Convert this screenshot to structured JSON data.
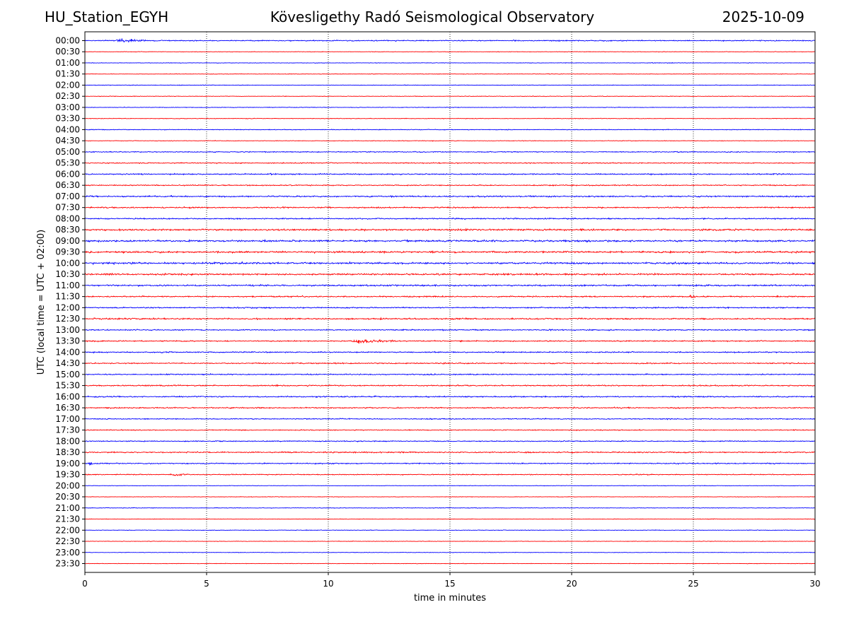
{
  "header": {
    "station": "HU_Station_EGYH",
    "title": "Kövesligethy Radó Seismological Observatory",
    "date": "2025-10-09"
  },
  "chart_data": {
    "type": "line",
    "title": "Kövesligethy Radó Seismological Observatory",
    "xlabel": "time in minutes",
    "ylabel": "UTC (local time = UTC + 02:00)",
    "xlim": [
      0,
      30
    ],
    "xticks": [
      0,
      5,
      10,
      15,
      20,
      25,
      30
    ],
    "grid": "vertical dotted",
    "series_colors": [
      "#0000ff",
      "#ff0000"
    ],
    "rows": [
      {
        "label": "00:00",
        "noise": 0.25,
        "events": [
          {
            "t": 1.5,
            "dur": 1.8,
            "amp": 1.1
          },
          {
            "t": 3.0,
            "dur": 1.5,
            "amp": 0.3
          }
        ]
      },
      {
        "label": "00:30",
        "noise": 0.12,
        "events": []
      },
      {
        "label": "01:00",
        "noise": 0.12,
        "events": []
      },
      {
        "label": "01:30",
        "noise": 0.12,
        "events": []
      },
      {
        "label": "02:00",
        "noise": 0.13,
        "events": []
      },
      {
        "label": "02:30",
        "noise": 0.13,
        "events": [
          {
            "t": 18.4,
            "dur": 0.4,
            "amp": 0.3
          },
          {
            "t": 22.0,
            "dur": 0.3,
            "amp": 0.25
          }
        ]
      },
      {
        "label": "03:00",
        "noise": 0.14,
        "events": []
      },
      {
        "label": "03:30",
        "noise": 0.14,
        "events": []
      },
      {
        "label": "04:00",
        "noise": 0.17,
        "events": [
          {
            "t": 3.5,
            "dur": 0.5,
            "amp": 0.2
          }
        ]
      },
      {
        "label": "04:30",
        "noise": 0.14,
        "events": [
          {
            "t": 14.3,
            "dur": 0.3,
            "amp": 0.25
          }
        ]
      },
      {
        "label": "05:00",
        "noise": 0.22,
        "events": [
          {
            "t": 29.0,
            "dur": 1.4,
            "amp": 0.35
          }
        ]
      },
      {
        "label": "05:30",
        "noise": 0.24,
        "events": [
          {
            "t": 17.4,
            "dur": 0.4,
            "amp": 0.2
          },
          {
            "t": 29.6,
            "dur": 0.5,
            "amp": 0.3
          }
        ]
      },
      {
        "label": "06:00",
        "noise": 0.28,
        "events": [
          {
            "t": 7.6,
            "dur": 2.0,
            "amp": 0.5
          },
          {
            "t": 5.8,
            "dur": 0.8,
            "amp": 0.3
          },
          {
            "t": 21.0,
            "dur": 0.8,
            "amp": 0.4
          }
        ]
      },
      {
        "label": "06:30",
        "noise": 0.26,
        "events": [
          {
            "t": 21.3,
            "dur": 0.6,
            "amp": 0.35
          }
        ]
      },
      {
        "label": "07:00",
        "noise": 0.32,
        "events": [
          {
            "t": 0.4,
            "dur": 0.8,
            "amp": 0.5
          },
          {
            "t": 24.8,
            "dur": 1.2,
            "amp": 0.35
          },
          {
            "t": 20.5,
            "dur": 0.6,
            "amp": 0.3
          }
        ]
      },
      {
        "label": "07:30",
        "noise": 0.32,
        "events": [
          {
            "t": 9.4,
            "dur": 1.6,
            "amp": 0.4
          },
          {
            "t": 12.0,
            "dur": 0.8,
            "amp": 0.35
          }
        ]
      },
      {
        "label": "08:00",
        "noise": 0.3,
        "events": []
      },
      {
        "label": "08:30",
        "noise": 0.42,
        "events": [
          {
            "t": 2.2,
            "dur": 1.5,
            "amp": 0.55
          },
          {
            "t": 20.1,
            "dur": 0.6,
            "amp": 0.4
          },
          {
            "t": 27.5,
            "dur": 1.5,
            "amp": 0.45
          }
        ]
      },
      {
        "label": "09:00",
        "noise": 0.42,
        "events": [
          {
            "t": 10.1,
            "dur": 0.5,
            "amp": 0.5
          },
          {
            "t": 28.9,
            "dur": 0.8,
            "amp": 0.45
          }
        ]
      },
      {
        "label": "09:30",
        "noise": 0.42,
        "events": [
          {
            "t": 14.3,
            "dur": 0.6,
            "amp": 0.5
          },
          {
            "t": 16.2,
            "dur": 0.8,
            "amp": 0.45
          }
        ]
      },
      {
        "label": "10:00",
        "noise": 0.42,
        "events": [
          {
            "t": 9.5,
            "dur": 1.2,
            "amp": 0.6
          },
          {
            "t": 17.2,
            "dur": 0.5,
            "amp": 0.5
          },
          {
            "t": 24.0,
            "dur": 1.2,
            "amp": 0.4
          }
        ]
      },
      {
        "label": "10:30",
        "noise": 0.4,
        "events": [
          {
            "t": 3.0,
            "dur": 1.5,
            "amp": 0.45
          },
          {
            "t": 16.0,
            "dur": 1.2,
            "amp": 0.45
          },
          {
            "t": 23.2,
            "dur": 0.5,
            "amp": 0.4
          }
        ]
      },
      {
        "label": "11:00",
        "noise": 0.36,
        "events": [
          {
            "t": 0.8,
            "dur": 0.6,
            "amp": 0.55
          },
          {
            "t": 12.5,
            "dur": 0.6,
            "amp": 0.6
          }
        ]
      },
      {
        "label": "11:30",
        "noise": 0.3,
        "events": [
          {
            "t": 18.4,
            "dur": 0.5,
            "amp": 0.45
          },
          {
            "t": 24.8,
            "dur": 1.0,
            "amp": 0.8
          }
        ]
      },
      {
        "label": "12:00",
        "noise": 0.3,
        "events": [
          {
            "t": 2.5,
            "dur": 0.5,
            "amp": 0.3
          }
        ]
      },
      {
        "label": "12:30",
        "noise": 0.34,
        "events": [
          {
            "t": 19.6,
            "dur": 0.5,
            "amp": 0.45
          },
          {
            "t": 21.8,
            "dur": 1.5,
            "amp": 0.45
          }
        ]
      },
      {
        "label": "13:00",
        "noise": 0.28,
        "events": [
          {
            "t": 3.4,
            "dur": 0.5,
            "amp": 0.3
          },
          {
            "t": 6.0,
            "dur": 0.4,
            "amp": 0.3
          }
        ]
      },
      {
        "label": "13:30",
        "noise": 0.27,
        "events": [
          {
            "t": 11.3,
            "dur": 2.6,
            "amp": 1.45
          },
          {
            "t": 29.0,
            "dur": 0.5,
            "amp": 0.3
          }
        ]
      },
      {
        "label": "14:00",
        "noise": 0.28,
        "events": []
      },
      {
        "label": "14:30",
        "noise": 0.28,
        "events": []
      },
      {
        "label": "15:00",
        "noise": 0.26,
        "events": [
          {
            "t": 14.0,
            "dur": 3.0,
            "amp": 0.5
          }
        ]
      },
      {
        "label": "15:30",
        "noise": 0.3,
        "events": [
          {
            "t": 28.8,
            "dur": 1.5,
            "amp": 0.4
          }
        ]
      },
      {
        "label": "16:00",
        "noise": 0.3,
        "events": [
          {
            "t": 21.0,
            "dur": 0.6,
            "amp": 0.35
          },
          {
            "t": 27.5,
            "dur": 0.4,
            "amp": 0.35
          }
        ]
      },
      {
        "label": "16:30",
        "noise": 0.28,
        "events": []
      },
      {
        "label": "17:00",
        "noise": 0.24,
        "events": []
      },
      {
        "label": "17:30",
        "noise": 0.22,
        "events": [
          {
            "t": 28.5,
            "dur": 1.0,
            "amp": 0.25
          }
        ]
      },
      {
        "label": "18:00",
        "noise": 0.24,
        "events": [
          {
            "t": 22.0,
            "dur": 0.6,
            "amp": 0.3
          }
        ]
      },
      {
        "label": "18:30",
        "noise": 0.3,
        "events": [
          {
            "t": 6.8,
            "dur": 0.4,
            "amp": 0.4
          },
          {
            "t": 14.0,
            "dur": 0.5,
            "amp": 0.35
          }
        ]
      },
      {
        "label": "19:00",
        "noise": 0.25,
        "events": [
          {
            "t": 0.2,
            "dur": 0.7,
            "amp": 0.7
          }
        ]
      },
      {
        "label": "19:30",
        "noise": 0.22,
        "events": [
          {
            "t": 3.7,
            "dur": 1.3,
            "amp": 0.85
          },
          {
            "t": 2.5,
            "dur": 0.6,
            "amp": 0.35
          },
          {
            "t": 8.0,
            "dur": 1.0,
            "amp": 0.25
          }
        ]
      },
      {
        "label": "20:00",
        "noise": 0.12,
        "events": [
          {
            "t": 5.8,
            "dur": 0.4,
            "amp": 0.2
          }
        ]
      },
      {
        "label": "20:30",
        "noise": 0.12,
        "events": [
          {
            "t": 28.5,
            "dur": 0.5,
            "amp": 0.2
          }
        ]
      },
      {
        "label": "21:00",
        "noise": 0.14,
        "events": []
      },
      {
        "label": "21:30",
        "noise": 0.12,
        "events": []
      },
      {
        "label": "22:00",
        "noise": 0.13,
        "events": []
      },
      {
        "label": "22:30",
        "noise": 0.12,
        "events": []
      },
      {
        "label": "23:00",
        "noise": 0.12,
        "events": []
      },
      {
        "label": "23:30",
        "noise": 0.12,
        "events": []
      }
    ]
  }
}
